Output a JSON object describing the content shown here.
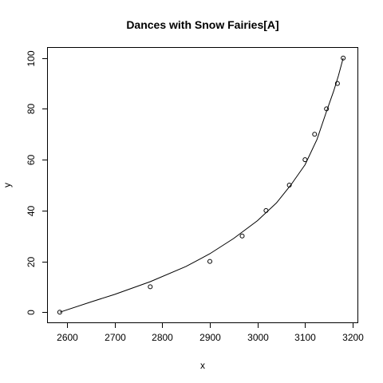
{
  "chart_data": {
    "type": "scatter",
    "title": "Dances with Snow Fairies[A]",
    "xlabel": "x",
    "ylabel": "y",
    "xlim": [
      2560,
      3210
    ],
    "ylim": [
      -4,
      104
    ],
    "x_ticks": [
      2600,
      2700,
      2800,
      2900,
      3000,
      3100,
      3200
    ],
    "y_ticks": [
      0,
      20,
      40,
      60,
      80,
      100
    ],
    "grid": false,
    "points": [
      {
        "x": 2585,
        "y": 0
      },
      {
        "x": 2775,
        "y": 10
      },
      {
        "x": 2900,
        "y": 20
      },
      {
        "x": 2968,
        "y": 30
      },
      {
        "x": 3018,
        "y": 40
      },
      {
        "x": 3067,
        "y": 50
      },
      {
        "x": 3100,
        "y": 60
      },
      {
        "x": 3120,
        "y": 70
      },
      {
        "x": 3145,
        "y": 80
      },
      {
        "x": 3168,
        "y": 90
      },
      {
        "x": 3180,
        "y": 100
      }
    ],
    "fit_curve": [
      {
        "x": 2585,
        "y": 0
      },
      {
        "x": 2650,
        "y": 4
      },
      {
        "x": 2700,
        "y": 7
      },
      {
        "x": 2775,
        "y": 12
      },
      {
        "x": 2850,
        "y": 18
      },
      {
        "x": 2900,
        "y": 23
      },
      {
        "x": 2950,
        "y": 29
      },
      {
        "x": 3000,
        "y": 36
      },
      {
        "x": 3040,
        "y": 43
      },
      {
        "x": 3070,
        "y": 50
      },
      {
        "x": 3100,
        "y": 58
      },
      {
        "x": 3125,
        "y": 68
      },
      {
        "x": 3145,
        "y": 79
      },
      {
        "x": 3160,
        "y": 87
      },
      {
        "x": 3170,
        "y": 93
      },
      {
        "x": 3180,
        "y": 100
      }
    ]
  }
}
